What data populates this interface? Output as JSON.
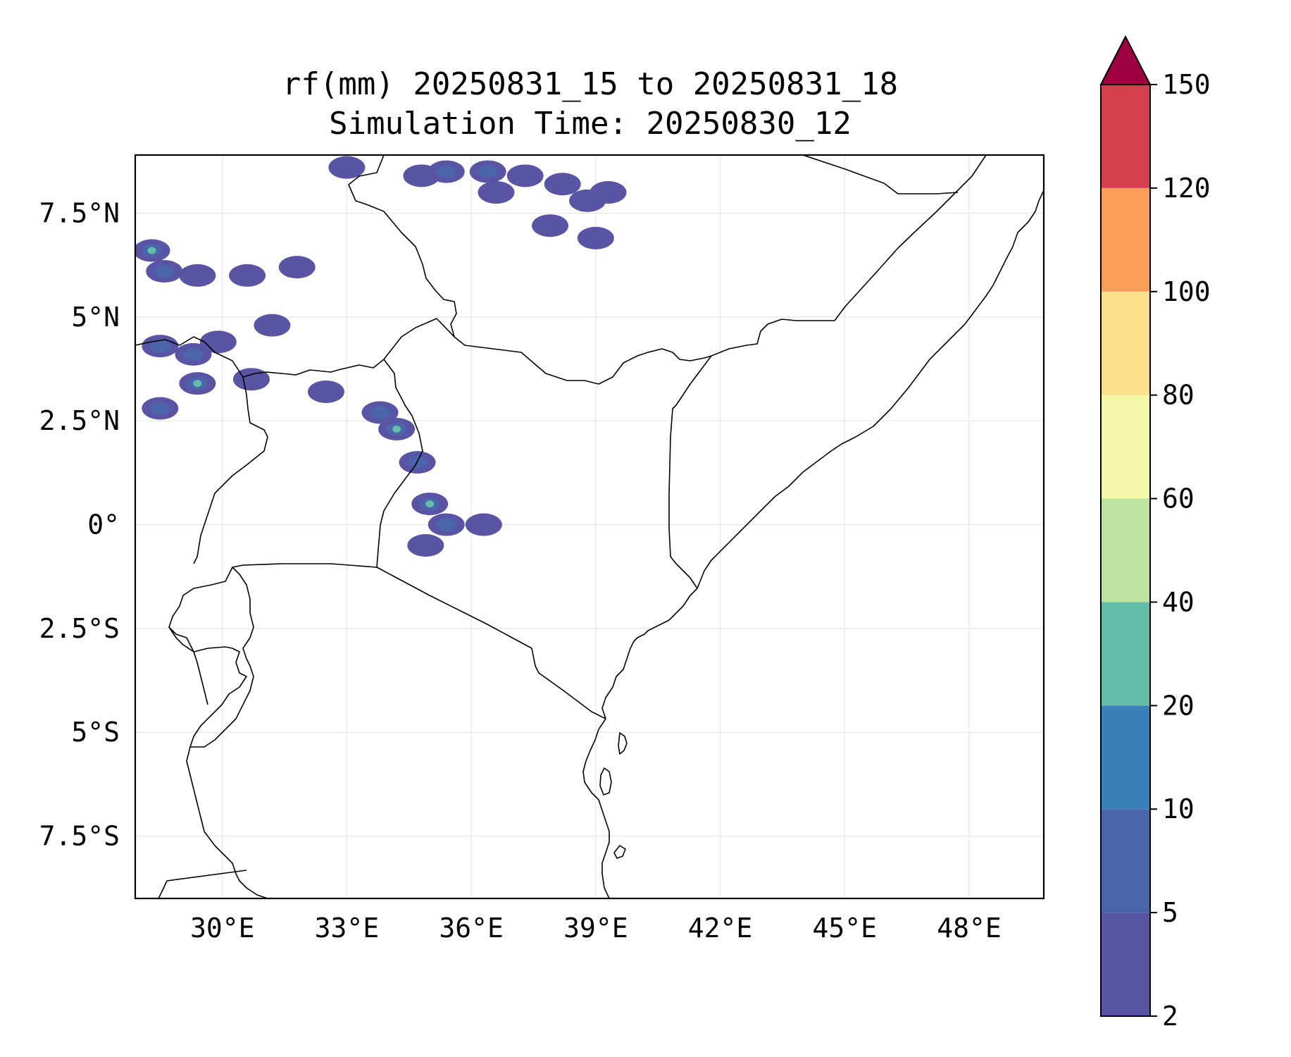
{
  "title": {
    "line1": "rf(mm) 20250831_15 to 20250831_18",
    "line2": "Simulation Time: 20250830_12"
  },
  "map": {
    "lon_range": [
      27.9,
      49.8
    ],
    "lat_range": [
      -9.0,
      8.9
    ],
    "x_ticks": [
      {
        "value": 30,
        "label": "30°E"
      },
      {
        "value": 33,
        "label": "33°E"
      },
      {
        "value": 36,
        "label": "36°E"
      },
      {
        "value": 39,
        "label": "39°E"
      },
      {
        "value": 42,
        "label": "42°E"
      },
      {
        "value": 45,
        "label": "45°E"
      },
      {
        "value": 48,
        "label": "48°E"
      }
    ],
    "y_ticks": [
      {
        "value": 7.5,
        "label": "7.5°N"
      },
      {
        "value": 5,
        "label": "5°N"
      },
      {
        "value": 2.5,
        "label": "2.5°N"
      },
      {
        "value": 0,
        "label": "0°"
      },
      {
        "value": -2.5,
        "label": "2.5°S"
      },
      {
        "value": -5,
        "label": "5°S"
      },
      {
        "value": -7.5,
        "label": "7.5°S"
      }
    ],
    "grid": true,
    "rain_cells": [
      {
        "lon": 28.3,
        "lat": 6.6,
        "level": 3
      },
      {
        "lon": 28.6,
        "lat": 6.1,
        "level": 2
      },
      {
        "lon": 29.4,
        "lat": 6.0,
        "level": 1
      },
      {
        "lon": 30.6,
        "lat": 6.0,
        "level": 1
      },
      {
        "lon": 31.8,
        "lat": 6.2,
        "level": 1
      },
      {
        "lon": 33.0,
        "lat": 8.6,
        "level": 1
      },
      {
        "lon": 34.8,
        "lat": 8.4,
        "level": 1
      },
      {
        "lon": 35.4,
        "lat": 8.5,
        "level": 2
      },
      {
        "lon": 36.4,
        "lat": 8.5,
        "level": 2
      },
      {
        "lon": 36.6,
        "lat": 8.0,
        "level": 1
      },
      {
        "lon": 37.3,
        "lat": 8.4,
        "level": 1
      },
      {
        "lon": 38.2,
        "lat": 8.2,
        "level": 1
      },
      {
        "lon": 38.8,
        "lat": 7.8,
        "level": 1
      },
      {
        "lon": 39.3,
        "lat": 8.0,
        "level": 1
      },
      {
        "lon": 39.0,
        "lat": 6.9,
        "level": 1
      },
      {
        "lon": 37.9,
        "lat": 7.2,
        "level": 1
      },
      {
        "lon": 28.5,
        "lat": 4.3,
        "level": 2
      },
      {
        "lon": 29.3,
        "lat": 4.1,
        "level": 2
      },
      {
        "lon": 29.9,
        "lat": 4.4,
        "level": 1
      },
      {
        "lon": 29.4,
        "lat": 3.4,
        "level": 3
      },
      {
        "lon": 28.5,
        "lat": 2.8,
        "level": 2
      },
      {
        "lon": 30.7,
        "lat": 3.5,
        "level": 1
      },
      {
        "lon": 31.2,
        "lat": 4.8,
        "level": 1
      },
      {
        "lon": 32.5,
        "lat": 3.2,
        "level": 1
      },
      {
        "lon": 33.8,
        "lat": 2.7,
        "level": 2
      },
      {
        "lon": 34.2,
        "lat": 2.3,
        "level": 3
      },
      {
        "lon": 34.7,
        "lat": 1.5,
        "level": 2
      },
      {
        "lon": 35.0,
        "lat": 0.5,
        "level": 3
      },
      {
        "lon": 35.4,
        "lat": 0.0,
        "level": 2
      },
      {
        "lon": 34.9,
        "lat": -0.5,
        "level": 1
      },
      {
        "lon": 36.3,
        "lat": 0.0,
        "level": 1
      }
    ]
  },
  "colorbar": {
    "tick_labels": [
      "2",
      "5",
      "10",
      "20",
      "40",
      "60",
      "80",
      "100",
      "120",
      "150"
    ],
    "colors": [
      "#5954a4",
      "#4b65ad",
      "#3880b9",
      "#64bda9",
      "#bce4a0",
      "#f3f9a8",
      "#fcdf8b",
      "#f99d58",
      "#d6404e"
    ],
    "extend_color": "#9e0142"
  }
}
